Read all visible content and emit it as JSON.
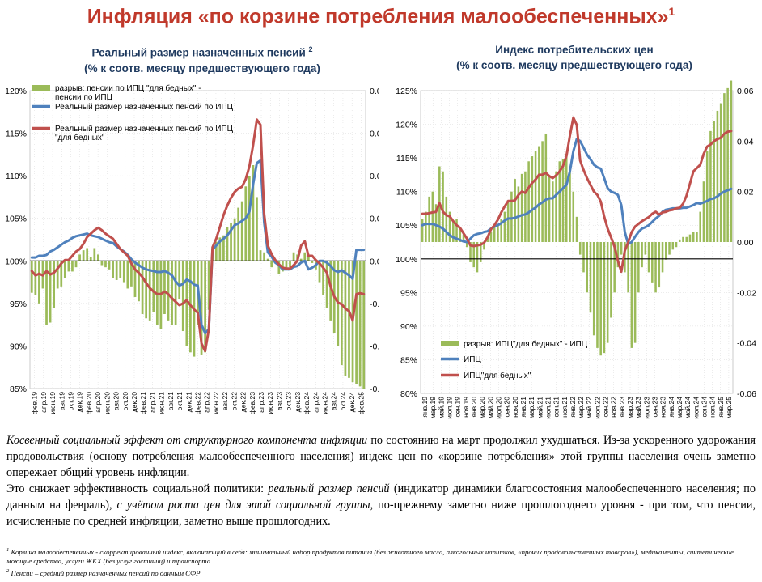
{
  "page": {
    "title": "Инфляция «по корзине потребления малообеспеченных»",
    "title_sup": "1"
  },
  "chart_left": {
    "subtitle_line1": "Реальный размер назначенных пенсий",
    "subtitle_sup": "2",
    "subtitle_line2": "(% к соотв. месяцу предшествующего года)"
  },
  "chart_right": {
    "subtitle_line1": "Индекс потребительских цен",
    "subtitle_line2": "(% к соотв. месяцу предшествующего года)"
  },
  "text": {
    "p1_italic": "Косвенный социальный эффект от структурного компонента инфляции",
    "p1_rest": " по состоянию на март продолжил ухудшаться. Из-за ускоренного удорожания продовольствия (основу потребления малообеспеченного населения) индекс цен по «корзине потребления» этой группы населения очень заметно опережает общий уровень инфляции.",
    "p2_a": "Это снижает эффективность социальной политики: ",
    "p2_b_italic": "реальный размер пенсий",
    "p2_c": " (индикатор динамики благосостояния малообеспеченного населения; по данным на февраль), ",
    "p2_d_italic": "с учётом роста цен для этой социальной группы,",
    "p2_e": " по-прежнему заметно ниже прошлогоднего уровня - при том, что пенсии, исчисленные по средней инфляции, заметно выше прошлогодних."
  },
  "footnotes": {
    "f1_sup": "1",
    "f1_text": " Корзина малообеспеченных - скорректированный индекс, включающий в себя: минимальный набор продуктов питания (без животного масла, алкогольных напитков, «прочих продовольственных товаров»), медикаменты, синтетические моющие средства, услуги ЖКХ (без услуг гостиниц) и транспорта",
    "f2_sup": "2",
    "f2_text": " Пенсии – средний размер назначенных пенсий по данным СФР"
  },
  "chart_data": [
    {
      "type": "bar",
      "legend_position": "top-left",
      "grid": true,
      "y_left": {
        "min": 85,
        "max": 120,
        "step": 5,
        "unit": "%"
      },
      "y_right": {
        "min": -0.06,
        "max": 0.08,
        "step": 0.02
      },
      "x_tick_labels": [
        "фев.19",
        "апр.19",
        "июн.19",
        "авг.19",
        "окт.19",
        "дек.19",
        "фев.20",
        "апр.20",
        "июн.20",
        "авг.20",
        "окт.20",
        "дек.20",
        "фев.21",
        "апр.21",
        "июн.21",
        "авг.21",
        "окт.21",
        "дек.21",
        "фев.22",
        "апр.22",
        "июн.22",
        "авг.22",
        "окт.22",
        "дек.22",
        "фев.23",
        "апр.23",
        "июн.23",
        "авг.23",
        "окт.23",
        "дек.23",
        "фев.24",
        "апр.24",
        "июн.24",
        "авг.24",
        "окт.24",
        "дек.24",
        "фев.25"
      ],
      "series": [
        {
          "name": "разрыв: пенсии по ИПЦ \"для бедных\" - пенсии по ИПЦ",
          "kind": "bar",
          "axis": "right",
          "color": "#9bbb59",
          "values": [
            -0.015,
            -0.016,
            -0.02,
            -0.013,
            -0.03,
            -0.029,
            -0.022,
            -0.013,
            -0.012,
            -0.008,
            -0.005,
            -0.005,
            -0.003,
            0.003,
            0.005,
            0.006,
            0.002,
            0.006,
            0.003,
            -0.002,
            -0.003,
            -0.004,
            -0.008,
            -0.009,
            -0.008,
            -0.01,
            -0.013,
            -0.012,
            -0.017,
            -0.019,
            -0.025,
            -0.027,
            -0.028,
            -0.024,
            -0.03,
            -0.032,
            -0.025,
            -0.028,
            -0.03,
            -0.03,
            -0.018,
            -0.033,
            -0.04,
            -0.043,
            -0.045,
            -0.03,
            -0.044,
            -0.043,
            -0.023,
            0.004,
            0.009,
            0.011,
            0.012,
            0.016,
            0.018,
            0.02,
            0.025,
            0.028,
            0.035,
            0.04,
            0.045,
            0.03,
            0.005,
            0.004,
            0.001,
            -0.003,
            -0.001,
            -0.006,
            -0.005,
            -0.004,
            -0.003,
            0.004,
            0.003,
            0.001,
            0.004,
            0.002,
            -0.001,
            -0.004,
            -0.01,
            -0.016,
            -0.022,
            -0.028,
            -0.034,
            -0.04,
            -0.049,
            -0.054,
            -0.055,
            -0.057,
            -0.058,
            -0.059,
            -0.06
          ]
        },
        {
          "name": "Реальный размер назначенных пенсий по ИПЦ",
          "kind": "line",
          "axis": "left",
          "color": "#4f81bd",
          "values": [
            100.4,
            100.4,
            100.6,
            100.6,
            100.7,
            101.1,
            101.3,
            101.6,
            101.9,
            102.2,
            102.4,
            102.7,
            102.9,
            103.0,
            103.1,
            103.2,
            103.0,
            102.9,
            102.8,
            102.6,
            102.4,
            102.2,
            102.1,
            101.7,
            101.4,
            101.1,
            100.7,
            100.2,
            99.8,
            99.5,
            99.2,
            99.0,
            98.9,
            98.8,
            98.7,
            98.7,
            98.8,
            98.6,
            98.3,
            97.6,
            97.1,
            97.3,
            97.8,
            97.6,
            97.2,
            97.1,
            92.5,
            91.5,
            92.0,
            101.3,
            101.8,
            102.3,
            102.6,
            103.0,
            103.6,
            104.2,
            104.4,
            104.7,
            105.0,
            105.8,
            109.0,
            111.5,
            111.8,
            104.5,
            101.0,
            100.5,
            99.8,
            99.5,
            99.0,
            99.0,
            99.0,
            99.3,
            99.4,
            99.8,
            100.0,
            99.0,
            99.2,
            99.5,
            100.0,
            100.0,
            99.8,
            99.4,
            98.9,
            98.7,
            98.9,
            98.6,
            98.3,
            97.9,
            101.3,
            101.3,
            101.3
          ]
        },
        {
          "name": "Реальный размер назначенных пенсий по ИПЦ \"для бедных\"",
          "kind": "line",
          "axis": "left",
          "color": "#c0504d",
          "values": [
            98.8,
            98.3,
            98.5,
            98.3,
            98.8,
            98.4,
            98.6,
            99.1,
            99.7,
            100.1,
            100.1,
            100.6,
            101.1,
            101.4,
            102.0,
            102.8,
            103.2,
            103.6,
            103.9,
            103.6,
            103.2,
            102.9,
            102.6,
            102.0,
            101.4,
            101.0,
            100.6,
            99.7,
            99.0,
            98.6,
            98.1,
            97.4,
            96.8,
            96.4,
            96.1,
            96.1,
            96.4,
            96.1,
            95.6,
            95.2,
            94.8,
            95.0,
            95.4,
            94.8,
            94.3,
            93.9,
            90.3,
            89.4,
            92.0,
            101.6,
            102.6,
            104.0,
            105.4,
            106.5,
            107.4,
            108.1,
            108.5,
            108.7,
            109.6,
            111.1,
            113.6,
            116.6,
            116.0,
            105.5,
            101.8,
            100.8,
            100.1,
            99.6,
            99.2,
            99.1,
            99.1,
            99.5,
            100.0,
            101.8,
            102.3,
            100.6,
            100.6,
            100.1,
            99.7,
            99.2,
            98.6,
            97.0,
            95.8,
            95.1,
            94.9,
            94.4,
            94.1,
            93.0,
            96.1,
            96.2,
            96.1
          ]
        }
      ]
    },
    {
      "type": "bar",
      "legend_position": "bottom-left",
      "grid": true,
      "y_left": {
        "min": 80,
        "max": 125,
        "step": 5,
        "unit": "%"
      },
      "y_right": {
        "min": -0.06,
        "max": 0.06,
        "step": 0.02
      },
      "x_tick_labels": [
        "янв.19",
        "мар.19",
        "май.19",
        "июл.19",
        "сен.19",
        "ноя.19",
        "янв.20",
        "мар.20",
        "май.20",
        "июл.20",
        "сен.20",
        "ноя.20",
        "янв.21",
        "мар.21",
        "май.21",
        "июл.21",
        "сен.21",
        "ноя.21",
        "янв.22",
        "мар.22",
        "май.22",
        "июл.22",
        "сен.22",
        "ноя.22",
        "янв.23",
        "мар.23",
        "май.23",
        "июл.23",
        "сен.23",
        "ноя.23",
        "янв.24",
        "мар.24",
        "май.24",
        "июл.24",
        "сен.24",
        "ноя.24",
        "янв.25",
        "мар.25"
      ],
      "series": [
        {
          "name": "разрыв: ИПЦ\"для бедных\" - ИПЦ",
          "kind": "bar",
          "axis": "right",
          "color": "#9bbb59",
          "values": [
            0.009,
            0.012,
            0.018,
            0.02,
            0.015,
            0.03,
            0.028,
            0.018,
            0.012,
            0.008,
            0.009,
            0.005,
            0.003,
            -0.002,
            -0.008,
            -0.01,
            -0.012,
            -0.008,
            -0.003,
            0.002,
            0.004,
            0.006,
            0.007,
            0.009,
            0.012,
            0.016,
            0.02,
            0.025,
            0.022,
            0.027,
            0.028,
            0.032,
            0.034,
            0.036,
            0.038,
            0.04,
            0.043,
            0.026,
            0.024,
            0.028,
            0.032,
            0.033,
            0.035,
            0.03,
            0.02,
            0.01,
            -0.005,
            -0.012,
            -0.02,
            -0.028,
            -0.037,
            -0.042,
            -0.045,
            -0.044,
            -0.04,
            -0.03,
            -0.02,
            -0.01,
            -0.005,
            -0.012,
            -0.02,
            -0.042,
            -0.04,
            -0.02,
            -0.01,
            -0.005,
            -0.012,
            -0.016,
            -0.02,
            -0.018,
            -0.012,
            -0.007,
            -0.005,
            -0.003,
            -0.002,
            0.001,
            0.002,
            0.002,
            0.003,
            0.004,
            0.004,
            0.012,
            0.024,
            0.036,
            0.044,
            0.048,
            0.052,
            0.055,
            0.059,
            0.061,
            0.064
          ]
        },
        {
          "name": "ИПЦ",
          "kind": "line",
          "axis": "left",
          "color": "#4f81bd",
          "values": [
            105.0,
            105.2,
            105.2,
            105.2,
            105.0,
            104.8,
            104.5,
            104.0,
            103.5,
            103.2,
            103.0,
            102.8,
            102.6,
            102.5,
            103.0,
            103.5,
            103.7,
            103.8,
            104.0,
            104.1,
            104.5,
            104.8,
            105.0,
            105.3,
            105.7,
            106.0,
            106.0,
            106.1,
            106.3,
            106.5,
            106.6,
            106.9,
            107.3,
            107.6,
            108.1,
            108.4,
            108.8,
            109.0,
            109.0,
            109.5,
            110.0,
            110.5,
            111.0,
            113.0,
            116.0,
            117.8,
            117.5,
            116.5,
            115.5,
            114.8,
            114.0,
            113.6,
            113.4,
            112.0,
            110.5,
            110.0,
            109.8,
            109.5,
            108.0,
            104.0,
            102.2,
            102.5,
            103.3,
            104.0,
            104.5,
            104.7,
            105.0,
            105.5,
            106.0,
            106.4,
            107.0,
            107.3,
            107.4,
            107.5,
            107.5,
            107.5,
            107.6,
            107.6,
            107.8,
            108.0,
            108.3,
            108.2,
            108.4,
            108.6,
            108.9,
            109.0,
            109.3,
            109.7,
            110.0,
            110.2,
            110.4
          ]
        },
        {
          "name": "ИПЦ\"для бедных\"",
          "kind": "line",
          "axis": "left",
          "color": "#c0504d",
          "values": [
            106.7,
            106.7,
            106.8,
            106.9,
            107.0,
            108.3,
            107.0,
            106.5,
            106.3,
            105.6,
            105.0,
            104.6,
            103.8,
            103.0,
            102.0,
            101.9,
            102.0,
            102.1,
            102.4,
            103.2,
            104.4,
            105.0,
            105.8,
            106.9,
            107.8,
            108.6,
            108.6,
            108.7,
            109.5,
            110.0,
            109.8,
            110.6,
            111.3,
            111.8,
            112.5,
            112.5,
            112.8,
            112.3,
            112.0,
            112.4,
            113.0,
            113.8,
            115.3,
            118.3,
            121.0,
            119.9,
            114.6,
            113.2,
            112.0,
            111.0,
            110.0,
            109.5,
            108.5,
            106.3,
            104.5,
            103.2,
            101.8,
            99.7,
            98.1,
            101.2,
            102.5,
            104.0,
            104.8,
            105.2,
            105.6,
            105.9,
            106.2,
            106.7,
            107.0,
            106.6,
            106.9,
            107.0,
            107.2,
            107.3,
            107.5,
            107.6,
            108.2,
            109.4,
            111.2,
            113.0,
            113.5,
            114.0,
            115.6,
            116.7,
            117.0,
            117.5,
            117.8,
            118.0,
            118.6,
            118.9,
            119.0
          ]
        }
      ]
    }
  ]
}
